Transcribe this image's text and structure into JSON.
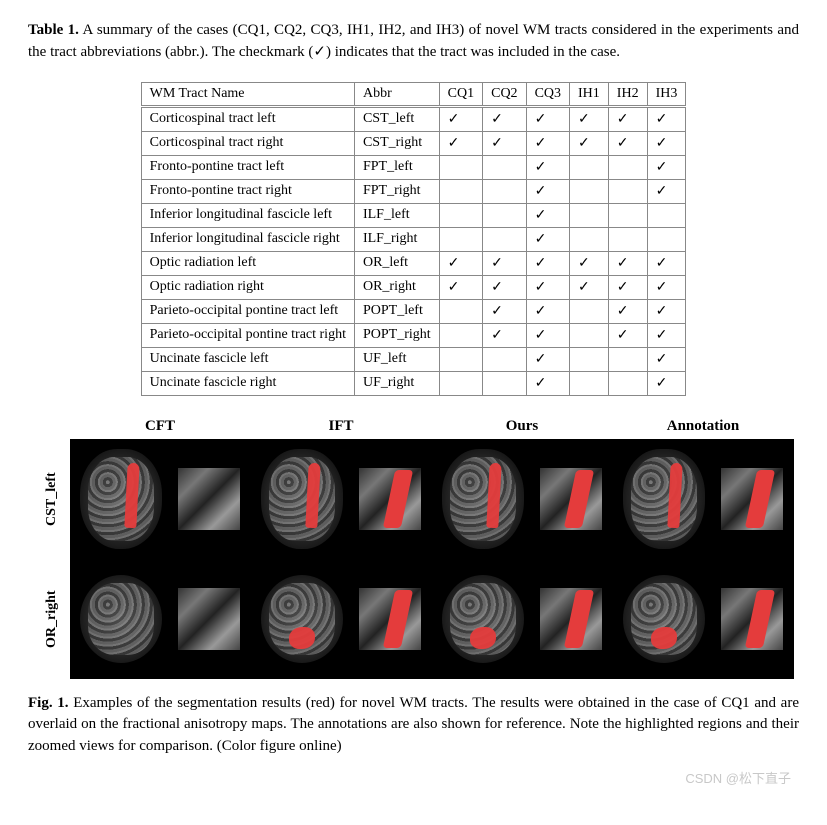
{
  "table_caption": {
    "label": "Table 1.",
    "text": " A summary of the cases (CQ1, CQ2, CQ3, IH1, IH2, and IH3) of novel WM tracts considered in the experiments and the tract abbreviations (abbr.). The checkmark (✓) indicates that the tract was included in the case."
  },
  "table": {
    "headers": [
      "WM Tract Name",
      "Abbr",
      "CQ1",
      "CQ2",
      "CQ3",
      "IH1",
      "IH2",
      "IH3"
    ],
    "checkmark": "✓",
    "rows": [
      {
        "name": "Corticospinal tract left",
        "abbr": "CST_left",
        "c": [
          1,
          1,
          1,
          1,
          1,
          1
        ]
      },
      {
        "name": "Corticospinal tract right",
        "abbr": "CST_right",
        "c": [
          1,
          1,
          1,
          1,
          1,
          1
        ]
      },
      {
        "name": "Fronto-pontine tract left",
        "abbr": "FPT_left",
        "c": [
          0,
          0,
          1,
          0,
          0,
          1
        ]
      },
      {
        "name": "Fronto-pontine tract right",
        "abbr": "FPT_right",
        "c": [
          0,
          0,
          1,
          0,
          0,
          1
        ]
      },
      {
        "name": "Inferior longitudinal fascicle left",
        "abbr": "ILF_left",
        "c": [
          0,
          0,
          1,
          0,
          0,
          0
        ]
      },
      {
        "name": "Inferior longitudinal fascicle right",
        "abbr": "ILF_right",
        "c": [
          0,
          0,
          1,
          0,
          0,
          0
        ]
      },
      {
        "name": "Optic radiation left",
        "abbr": "OR_left",
        "c": [
          1,
          1,
          1,
          1,
          1,
          1
        ]
      },
      {
        "name": "Optic radiation right",
        "abbr": "OR_right",
        "c": [
          1,
          1,
          1,
          1,
          1,
          1
        ]
      },
      {
        "name": "Parieto-occipital pontine tract left",
        "abbr": "POPT_left",
        "c": [
          0,
          1,
          1,
          0,
          1,
          1
        ]
      },
      {
        "name": "Parieto-occipital pontine tract right",
        "abbr": "POPT_right",
        "c": [
          0,
          1,
          1,
          0,
          1,
          1
        ]
      },
      {
        "name": "Uncinate fascicle left",
        "abbr": "UF_left",
        "c": [
          0,
          0,
          1,
          0,
          0,
          1
        ]
      },
      {
        "name": "Uncinate fascicle right",
        "abbr": "UF_right",
        "c": [
          0,
          0,
          1,
          0,
          0,
          1
        ]
      }
    ]
  },
  "figure": {
    "col_headers": [
      "CFT",
      "IFT",
      "Ours",
      "Annotation"
    ],
    "row_labels": [
      "CST_left",
      "OR_right"
    ],
    "panels": [
      [
        {
          "shape": "coronal",
          "seg": true,
          "zoom_seg": false
        },
        {
          "shape": "coronal",
          "seg": true,
          "zoom_seg": true
        },
        {
          "shape": "coronal",
          "seg": true,
          "zoom_seg": true
        },
        {
          "shape": "coronal",
          "seg": true,
          "zoom_seg": true
        }
      ],
      [
        {
          "shape": "axial",
          "seg": false,
          "zoom_seg": false
        },
        {
          "shape": "axial",
          "seg": true,
          "zoom_seg": true
        },
        {
          "shape": "axial",
          "seg": true,
          "zoom_seg": true
        },
        {
          "shape": "axial",
          "seg": true,
          "zoom_seg": true
        }
      ]
    ],
    "colors": {
      "segmentation": "#e43c3c",
      "background": "#000000"
    }
  },
  "figure_caption": {
    "label": "Fig. 1.",
    "text": " Examples of the segmentation results (red) for novel WM tracts. The results were obtained in the case of CQ1 and are overlaid on the fractional anisotropy maps. The annotations are also shown for reference. Note the highlighted regions and their zoomed views for comparison. (Color figure online)"
  },
  "watermark": "CSDN @松下直子"
}
